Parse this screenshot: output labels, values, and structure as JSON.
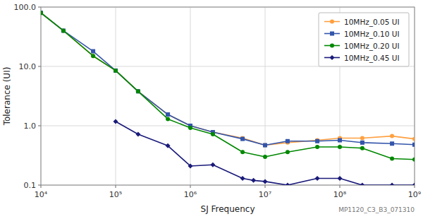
{
  "chart_data": {
    "type": "line",
    "xlabel": "SJ Frequency",
    "ylabel": "Tolerance (UI)",
    "log": true,
    "grid": true,
    "legend": "upper right",
    "xlim": [
      10000,
      1000000000
    ],
    "ylim": [
      0.1,
      100.0
    ],
    "xticks": [
      {
        "value": 10000,
        "label": "10⁴"
      },
      {
        "value": 100000,
        "label": "10⁵"
      },
      {
        "value": 1000000,
        "label": "10⁶"
      },
      {
        "value": 10000000,
        "label": "10⁷"
      },
      {
        "value": 100000000,
        "label": "10⁸"
      },
      {
        "value": 1000000000,
        "label": "10⁹"
      }
    ],
    "yticks": [
      0.1,
      {
        "value": 1.0,
        "label": "1.0"
      },
      {
        "value": 10.0,
        "label": "10.0"
      },
      {
        "value": 100.0,
        "label": "100.0"
      }
    ],
    "annotation": "MP1120_C3_B3_071310",
    "series": [
      {
        "name": "10MHz_0.05 UI",
        "color": "#FFA040",
        "marker": "circle",
        "x": [
          10000,
          20000,
          50000,
          100000,
          200000,
          500000,
          1000000,
          2000000,
          5000000,
          10000000,
          20000000,
          50000000,
          100000000,
          200000000,
          500000000,
          1000000000
        ],
        "values": [
          80,
          40,
          15,
          8.5,
          3.8,
          1.55,
          1.0,
          0.78,
          0.62,
          0.47,
          0.52,
          0.57,
          0.62,
          0.62,
          0.67,
          0.6
        ]
      },
      {
        "name": "10MHz_0.10 UI",
        "color": "#3355aa",
        "marker": "square",
        "x": [
          10000,
          20000,
          50000,
          100000,
          200000,
          500000,
          1000000,
          2000000,
          5000000,
          10000000,
          20000000,
          50000000,
          100000000,
          200000000,
          500000000,
          1000000000
        ],
        "values": [
          80,
          40,
          18,
          8.5,
          3.8,
          1.55,
          1.0,
          0.78,
          0.6,
          0.47,
          0.55,
          0.55,
          0.57,
          0.52,
          0.5,
          0.48
        ]
      },
      {
        "name": "10MHz_0.20 UI",
        "color": "#008800",
        "marker": "circle",
        "x": [
          10000,
          20000,
          50000,
          100000,
          200000,
          500000,
          1000000,
          2000000,
          5000000,
          10000000,
          20000000,
          50000000,
          100000000,
          200000000,
          500000000,
          1000000000
        ],
        "values": [
          80,
          40,
          15,
          8.5,
          3.8,
          1.3,
          0.92,
          0.72,
          0.36,
          0.3,
          0.36,
          0.44,
          0.44,
          0.42,
          0.28,
          0.27
        ]
      },
      {
        "name": "10MHz_0.45 UI",
        "color": "#1a1a7a",
        "marker": "diamond",
        "x": [
          100000,
          200000,
          500000,
          1000000,
          2000000,
          5000000,
          7000000,
          10000000,
          20000000,
          50000000,
          100000000,
          200000000,
          500000000,
          1000000000
        ],
        "values": [
          1.18,
          0.72,
          0.46,
          0.21,
          0.22,
          0.13,
          0.12,
          0.115,
          0.1,
          0.13,
          0.13,
          0.1,
          0.1,
          0.1
        ]
      }
    ]
  }
}
